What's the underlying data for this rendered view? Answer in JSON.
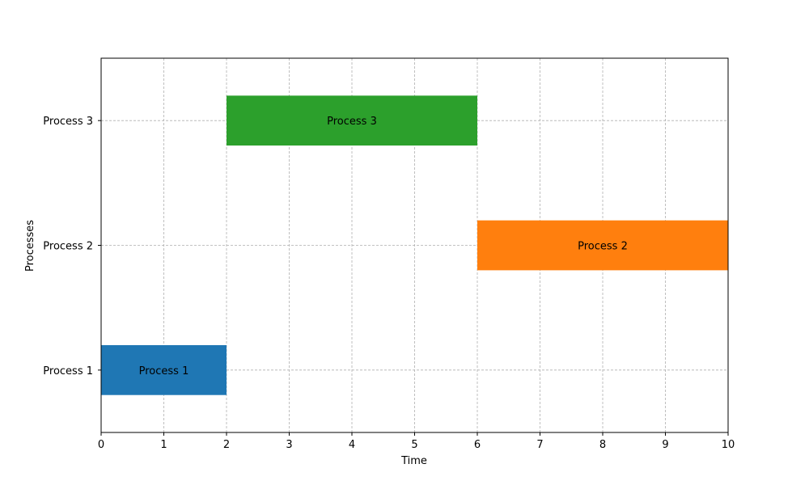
{
  "chart_data": {
    "type": "gantt",
    "title": "",
    "xlabel": "Time",
    "ylabel": "Processes",
    "xlim": [
      0,
      10
    ],
    "x_ticks": [
      0,
      1,
      2,
      3,
      4,
      5,
      6,
      7,
      8,
      9,
      10
    ],
    "categories": [
      "Process 1",
      "Process 2",
      "Process 3"
    ],
    "grid": true,
    "tasks": [
      {
        "label": "Process 1",
        "category": "Process 1",
        "start": 0,
        "end": 2,
        "color": "#1f77b4"
      },
      {
        "label": "Process 2",
        "category": "Process 2",
        "start": 6,
        "end": 10,
        "color": "#ff7f0e"
      },
      {
        "label": "Process 3",
        "category": "Process 3",
        "start": 2,
        "end": 6,
        "color": "#2ca02c"
      }
    ]
  }
}
